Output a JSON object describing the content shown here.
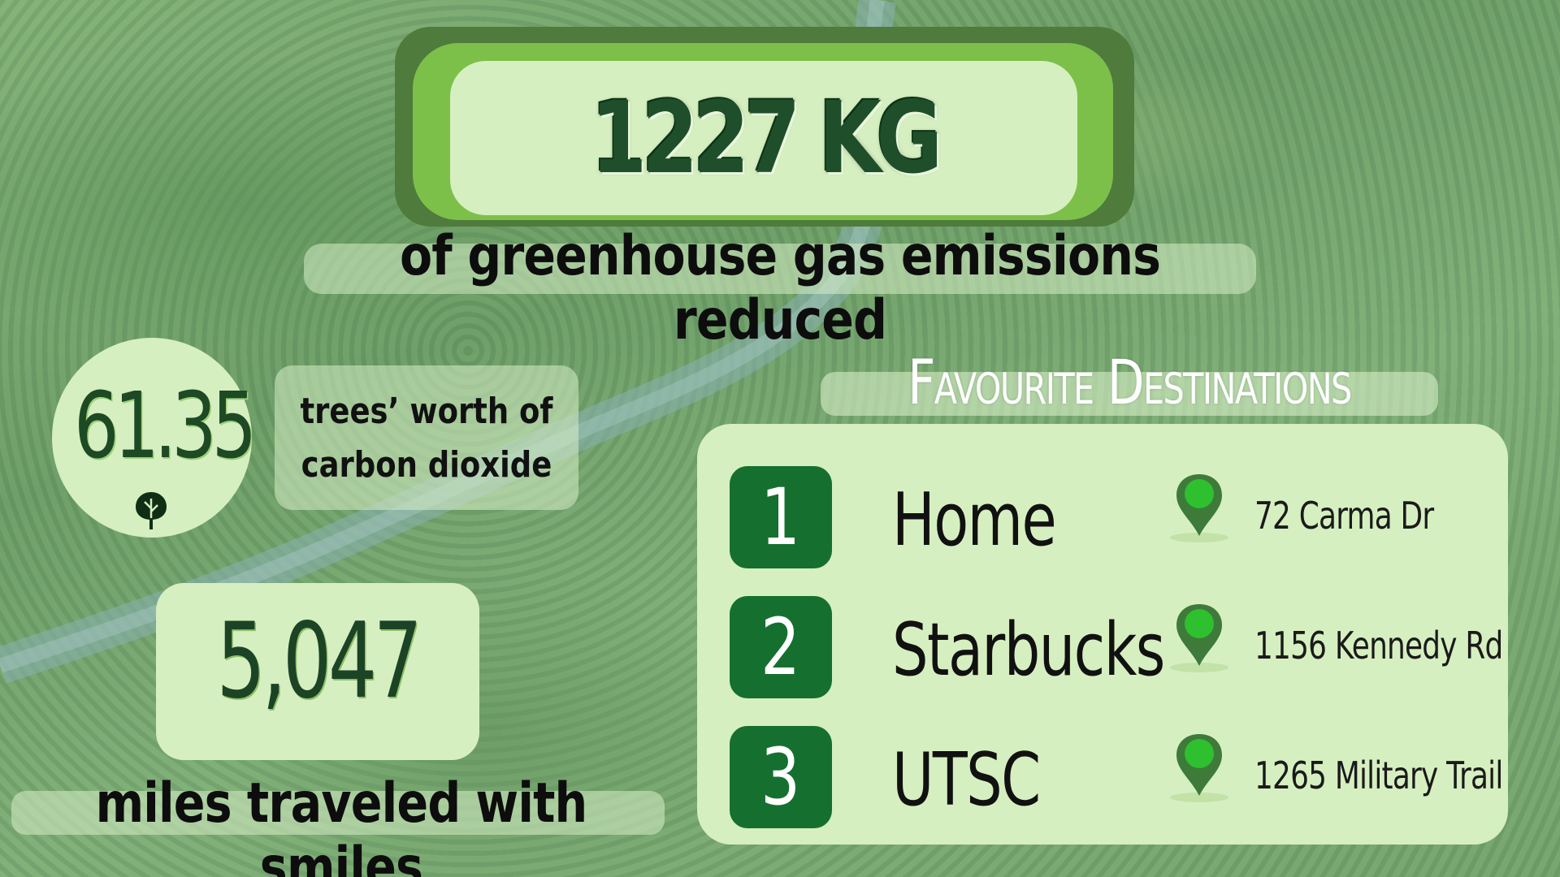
{
  "headline": {
    "value": "1227 KG",
    "label": "of greenhouse gas emissions reduced"
  },
  "trees": {
    "value": "61.35",
    "label_line1": "trees’ worth of",
    "label_line2": "carbon dioxide",
    "icon": "tree-icon"
  },
  "miles": {
    "value": "5,047",
    "label": "miles traveled with smiles"
  },
  "favourites": {
    "title": "Favourite Destinations",
    "items": [
      {
        "rank": "1",
        "name": "Home",
        "address": "72 Carma Dr",
        "icon": "map-pin-icon"
      },
      {
        "rank": "2",
        "name": "Starbucks",
        "address": "1156 Kennedy Rd",
        "icon": "map-pin-icon"
      },
      {
        "rank": "3",
        "name": "UTSC",
        "address": "1265 Military Trail",
        "icon": "map-pin-icon"
      }
    ]
  },
  "colors": {
    "dark_green": "#15702f",
    "light_green": "#d6efc0",
    "mid_green": "#7cc04a",
    "frame_green": "#4f7b3c",
    "pin_green": "#2ec02e"
  }
}
